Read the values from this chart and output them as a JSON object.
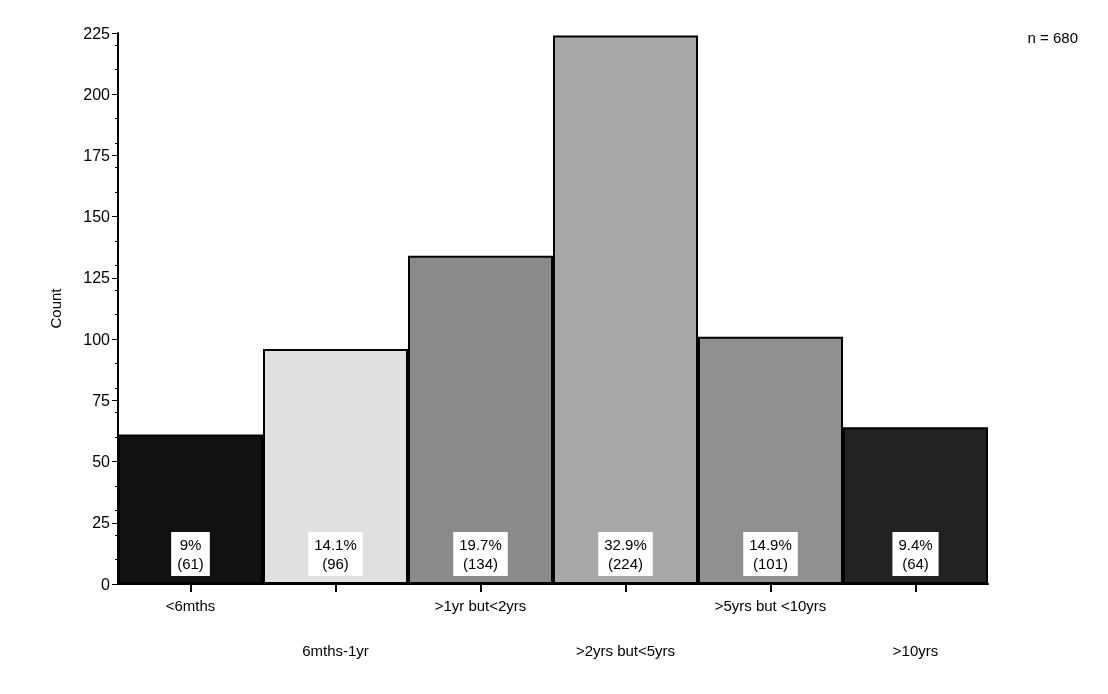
{
  "chart_data": {
    "type": "bar",
    "ylabel": "Count",
    "categories": [
      "<6mths",
      "6mths-1yr",
      ">1yr but<2yrs",
      ">2yrs but<5yrs",
      ">5yrs but <10yrs",
      ">10yrs"
    ],
    "values": [
      61,
      96,
      134,
      224,
      101,
      64
    ],
    "colors": [
      "#111111",
      "#e0e0e0",
      "#8a8a8a",
      "#a8a8a8",
      "#909090",
      "#222222"
    ],
    "value_labels": [
      "9%\n(61)",
      "14.1%\n(96)",
      "19.7%\n(134)",
      "32.9%\n(224)",
      "14.9%\n(101)",
      "9.4%\n(64)"
    ],
    "ylim": [
      0,
      225
    ],
    "yticks": [
      0,
      25,
      50,
      75,
      100,
      125,
      150,
      175,
      200,
      225
    ],
    "grid": false,
    "annotations": [
      "n = 680"
    ]
  }
}
